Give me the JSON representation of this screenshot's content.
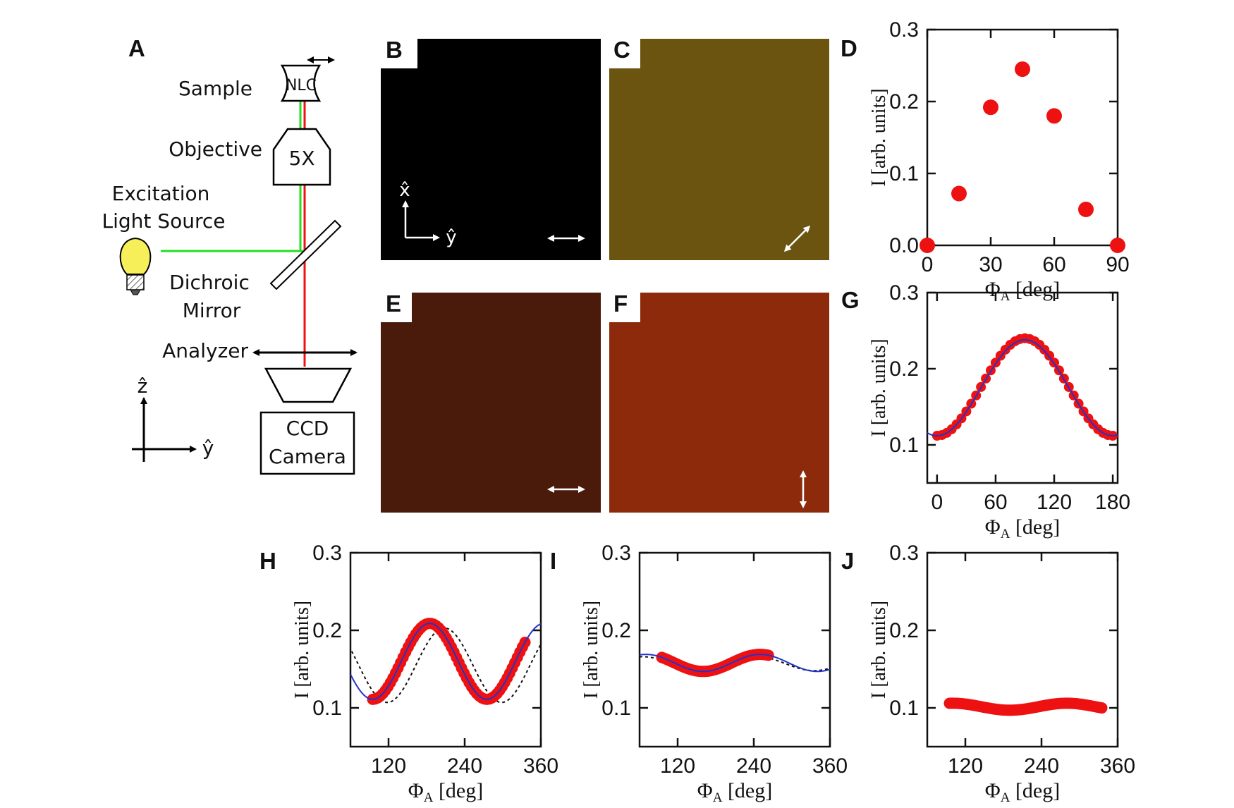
{
  "panel_labels": {
    "a": "A",
    "b": "B",
    "c": "C",
    "d": "D",
    "e": "E",
    "f": "F",
    "g": "G",
    "h": "H",
    "i": "I",
    "j": "J"
  },
  "diagram": {
    "sample_label": "Sample",
    "nlc_label": "NLC",
    "objective_label": "Objective",
    "objective_mag": "5X",
    "source_line1": "Excitation",
    "source_line2": "Light Source",
    "mirror_line1": "Dichroic",
    "mirror_line2": "Mirror",
    "analyzer_label": "Analyzer",
    "camera_line1": "CCD",
    "camera_line2": "Camera",
    "axis_z": "ẑ",
    "axis_y": "ŷ",
    "colors": {
      "excitation": "#22dd22",
      "emission": "#ee1111",
      "bulb": "#f7ef5a"
    }
  },
  "images": {
    "b": {
      "color": "#000000",
      "analyzer": "horizontal",
      "axis_x": "x̂",
      "axis_y": "ŷ"
    },
    "c": {
      "color": "#6a5410",
      "analyzer": "diagonal"
    },
    "e": {
      "color": "#4a1a0a",
      "analyzer": "horizontal"
    },
    "f": {
      "color": "#8e2a0c",
      "analyzer": "vertical"
    }
  },
  "axis_text": {
    "ylabel": "I [arb. units]",
    "xlabel_sym": "Φ",
    "xlabel_sub": "A",
    "xlabel_unit": "[deg]"
  },
  "chart_data": [
    {
      "panel": "D",
      "type": "scatter",
      "xlim": [
        0,
        90
      ],
      "ylim": [
        0,
        0.3
      ],
      "xticks": [
        0,
        30,
        60,
        90
      ],
      "yticks": [
        0.0,
        0.1,
        0.2,
        0.3
      ],
      "ytick_labels": [
        "0.0",
        "0.1",
        "0.2",
        "0.3"
      ],
      "xlabel": "ΦA [deg]",
      "ylabel": "I [arb. units]",
      "series": [
        {
          "color": "#ee1111",
          "x": [
            0,
            15,
            30,
            45,
            60,
            75,
            90
          ],
          "y": [
            0.0,
            0.072,
            0.192,
            0.245,
            0.18,
            0.05,
            0.0
          ]
        }
      ]
    },
    {
      "panel": "G",
      "type": "line",
      "xlim": [
        -10,
        185
      ],
      "ylim": [
        0.05,
        0.3
      ],
      "xticks": [
        0,
        60,
        120,
        180
      ],
      "yticks": [
        0.1,
        0.2,
        0.3
      ],
      "ytick_labels": [
        "0.1",
        "0.2",
        "0.3"
      ],
      "xlabel": "ΦA [deg]",
      "ylabel": "I [arb. units]",
      "data_model": {
        "offset": 0.176,
        "amplitude": 0.064,
        "period": 180,
        "peak_at": 90,
        "x_range": [
          0,
          180
        ],
        "step": 5
      },
      "fit_model": {
        "offset": 0.175,
        "amplitude": 0.063,
        "period": 180,
        "peak_at": 90,
        "x_range": [
          -10,
          185
        ]
      },
      "data_color": "#ee1111",
      "fit_color": "#2233cc"
    },
    {
      "panel": "H",
      "type": "line",
      "xlim": [
        60,
        360
      ],
      "ylim": [
        0.05,
        0.3
      ],
      "xticks": [
        120,
        240,
        360
      ],
      "yticks": [
        0.1,
        0.2,
        0.3
      ],
      "ytick_labels": [
        "0.1",
        "0.2",
        "0.3"
      ],
      "xlabel": "ΦA [deg]",
      "ylabel": "I [arb. units]",
      "data_model": {
        "offset": 0.16,
        "amplitude": 0.049,
        "period": 180,
        "peak_at": 185,
        "x_range": [
          95,
          335
        ],
        "step": 4
      },
      "fit_model": {
        "offset": 0.16,
        "amplitude": 0.049,
        "period": 180,
        "peak_at": 185,
        "x_range": [
          60,
          360
        ]
      },
      "ref_model": {
        "offset": 0.155,
        "amplitude": 0.048,
        "period": 180,
        "peak_at": 208,
        "x_range": [
          62,
          360
        ]
      },
      "data_color": "#ee1111",
      "fit_color": "#2233cc",
      "ref_color": "#111111"
    },
    {
      "panel": "I",
      "type": "line",
      "xlim": [
        60,
        360
      ],
      "ylim": [
        0.05,
        0.3
      ],
      "xticks": [
        120,
        240,
        360
      ],
      "yticks": [
        0.1,
        0.2,
        0.3
      ],
      "ytick_labels": [
        "0.1",
        "0.2",
        "0.3"
      ],
      "xlabel": "ΦA [deg]",
      "ylabel": "I [arb. units]",
      "data_model": {
        "offset": 0.158,
        "amplitude": 0.011,
        "period": 180,
        "peak_at": 250,
        "x_range": [
          95,
          265
        ],
        "step": 3
      },
      "fit_model": {
        "offset": 0.158,
        "amplitude": 0.011,
        "period": 180,
        "peak_at": 250,
        "x_range": [
          60,
          360
        ]
      },
      "ref_model": {
        "offset": 0.157,
        "amplitude": 0.009,
        "period": 180,
        "peak_at": 245,
        "x_range": [
          60,
          360
        ]
      },
      "data_color": "#ee1111",
      "fit_color": "#2233cc",
      "ref_color": "#111111"
    },
    {
      "panel": "J",
      "type": "line",
      "xlim": [
        60,
        360
      ],
      "ylim": [
        0.05,
        0.3
      ],
      "xticks": [
        120,
        240,
        360
      ],
      "yticks": [
        0.1,
        0.2,
        0.3
      ],
      "ytick_labels": [
        "0.1",
        "0.2",
        "0.3"
      ],
      "xlabel": "ΦA [deg]",
      "ylabel": "I [arb. units]",
      "data_model": {
        "offset": 0.1015,
        "amplitude": 0.0045,
        "period": 180,
        "peak_at": 100,
        "x_range": [
          95,
          335
        ],
        "step": 3
      },
      "data_color": "#ee1111"
    }
  ]
}
